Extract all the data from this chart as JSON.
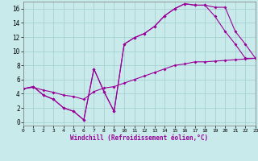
{
  "xlabel": "Windchill (Refroidissement éolien,°C)",
  "bg_color": "#c8eaea",
  "line_color": "#990099",
  "xlim": [
    0,
    23
  ],
  "ylim": [
    -0.5,
    17
  ],
  "xticks": [
    0,
    1,
    2,
    3,
    4,
    5,
    6,
    7,
    8,
    9,
    10,
    11,
    12,
    13,
    14,
    15,
    16,
    17,
    18,
    19,
    20,
    21,
    22,
    23
  ],
  "yticks": [
    0,
    2,
    4,
    6,
    8,
    10,
    12,
    14,
    16
  ],
  "line1_x": [
    0,
    1,
    2,
    3,
    4,
    5,
    6,
    7,
    8,
    9,
    10,
    11,
    12,
    13,
    14,
    15,
    16,
    17,
    18,
    19,
    20,
    21,
    22,
    23
  ],
  "line1_y": [
    4.7,
    5.0,
    3.8,
    3.2,
    2.0,
    1.5,
    0.3,
    7.5,
    4.3,
    1.5,
    11.0,
    11.9,
    12.5,
    13.5,
    15.0,
    16.0,
    16.7,
    16.5,
    16.5,
    16.2,
    16.2,
    12.8,
    11.0,
    9.0
  ],
  "line2_x": [
    0,
    1,
    2,
    3,
    4,
    5,
    6,
    7,
    8,
    9,
    10,
    11,
    12,
    13,
    14,
    15,
    16,
    17,
    18,
    19,
    20,
    21,
    22,
    23
  ],
  "line2_y": [
    4.7,
    5.0,
    3.8,
    3.2,
    2.0,
    1.5,
    0.3,
    7.5,
    4.3,
    1.5,
    11.0,
    11.9,
    12.5,
    13.5,
    15.0,
    16.0,
    16.7,
    16.5,
    16.5,
    14.9,
    12.8,
    11.0,
    9.0,
    9.0
  ],
  "line3_x": [
    0,
    1,
    2,
    3,
    4,
    5,
    6,
    7,
    8,
    9,
    10,
    11,
    12,
    13,
    14,
    15,
    16,
    17,
    18,
    19,
    20,
    21,
    22,
    23
  ],
  "line3_y": [
    4.7,
    4.9,
    4.5,
    4.2,
    3.8,
    3.6,
    3.2,
    4.3,
    4.8,
    5.0,
    5.5,
    6.0,
    6.5,
    7.0,
    7.5,
    8.0,
    8.2,
    8.5,
    8.5,
    8.6,
    8.7,
    8.8,
    8.9,
    9.0
  ],
  "grid_color": "#a0cccc",
  "markersize": 2.0,
  "linewidth": 0.8,
  "xtick_fontsize": 4.5,
  "ytick_fontsize": 5.5,
  "xlabel_fontsize": 5.5
}
